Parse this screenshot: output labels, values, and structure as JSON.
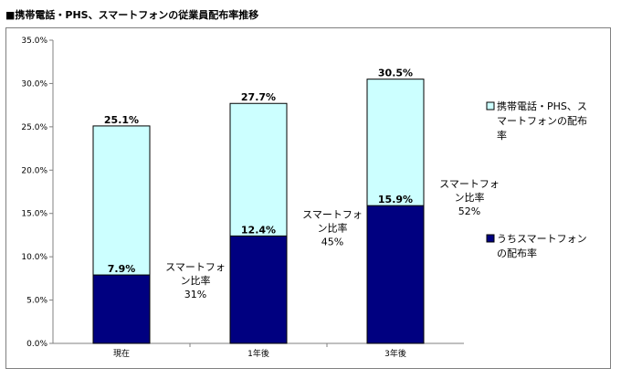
{
  "title": "■携帯電話・PHS、スマートフォンの従業員配布率推移",
  "colors": {
    "total_fill": "#ccffff",
    "smartphone_fill": "#000080",
    "bar_stroke": "#000000",
    "axis": "#808080"
  },
  "chart_data": {
    "type": "bar",
    "stacked": false,
    "overlapping": true,
    "categories": [
      "現在",
      "1年後",
      "3年後"
    ],
    "series": [
      {
        "name": "携帯電話・PHS、スマートフォンの配布率",
        "values": [
          25.1,
          27.7,
          30.5
        ],
        "labels": [
          "25.1%",
          "27.7%",
          "30.5%"
        ]
      },
      {
        "name": "うちスマートフォンの配布率",
        "values": [
          7.9,
          12.4,
          15.9
        ],
        "labels": [
          "7.9%",
          "12.4%",
          "15.9%"
        ]
      }
    ],
    "ratio_annotations": [
      [
        "スマートフォ",
        "ン比率",
        "31%"
      ],
      [
        "スマートフォ",
        "ン比率",
        "45%"
      ],
      [
        "スマートフォ",
        "ン比率",
        "52%"
      ]
    ],
    "legend_lines": [
      [
        "携帯電話・PHS、ス",
        "マートフォンの配布",
        "率"
      ],
      [
        "うちスマートフォン",
        "の配布率"
      ]
    ],
    "ylim": [
      0,
      35
    ],
    "yticks": [
      0,
      5,
      10,
      15,
      20,
      25,
      30,
      35
    ],
    "ytick_labels": [
      "0.0%",
      "5.0%",
      "10.0%",
      "15.0%",
      "20.0%",
      "25.0%",
      "30.0%",
      "35.0%"
    ],
    "grid": false,
    "legend_position": "right",
    "xlabel": "",
    "ylabel": ""
  }
}
